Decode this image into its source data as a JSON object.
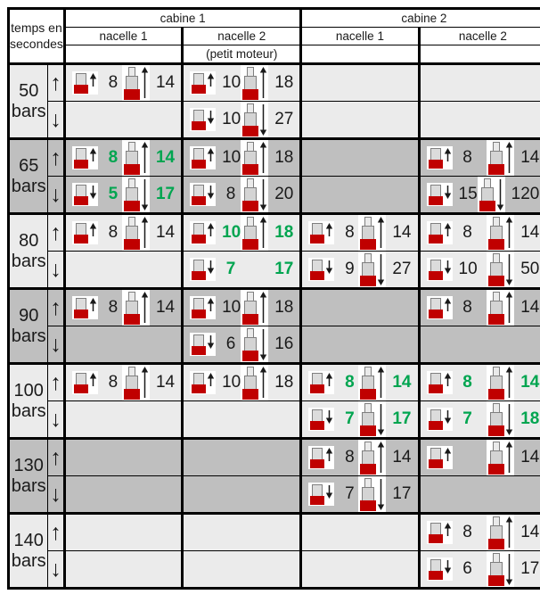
{
  "table": {
    "corner_label": "temps en\nsecondes",
    "up_symbol": "↑",
    "down_symbol": "↓",
    "cabins": [
      {
        "label": "cabine 1",
        "nacelles": [
          {
            "label": "nacelle 1",
            "sub": ""
          },
          {
            "label": "nacelle 2",
            "sub": "(petit moteur)"
          }
        ]
      },
      {
        "label": "cabine 2",
        "nacelles": [
          {
            "label": "nacelle 1",
            "sub": ""
          },
          {
            "label": "nacelle 2",
            "sub": ""
          }
        ]
      }
    ],
    "colors": {
      "light_row": "#EBEBEB",
      "dark_row": "#BFBFBF",
      "accent_green": "#00A550",
      "icon_red": "#C00000",
      "border": "#000000"
    },
    "rows": [
      {
        "pressure": "50",
        "unit": "bars",
        "shade": "light",
        "cells": {
          "up": [
            [
              {
                "size": "small",
                "dir": "up",
                "value": "8",
                "green": false
              },
              {
                "size": "large",
                "dir": "up",
                "value": "14",
                "green": false
              }
            ],
            [
              {
                "size": "small",
                "dir": "up",
                "value": "10",
                "green": false
              },
              {
                "size": "large",
                "dir": "up",
                "value": "18",
                "green": false
              }
            ],
            [],
            []
          ],
          "down": [
            [],
            [
              {
                "size": "small",
                "dir": "down",
                "value": "10",
                "green": false
              },
              {
                "size": "large",
                "dir": "down",
                "value": "27",
                "green": false
              }
            ],
            [],
            []
          ]
        }
      },
      {
        "pressure": "65",
        "unit": "bars",
        "shade": "dark",
        "cells": {
          "up": [
            [
              {
                "size": "small",
                "dir": "up",
                "value": "8",
                "green": true
              },
              {
                "size": "large",
                "dir": "up",
                "value": "14",
                "green": true
              }
            ],
            [
              {
                "size": "small",
                "dir": "up",
                "value": "10",
                "green": false
              },
              {
                "size": "large",
                "dir": "up",
                "value": "18",
                "green": false
              }
            ],
            [],
            [
              {
                "size": "small",
                "dir": "up",
                "value": "8",
                "green": false
              },
              {
                "size": "large",
                "dir": "up",
                "value": "14",
                "green": false
              }
            ]
          ],
          "down": [
            [
              {
                "size": "small",
                "dir": "down",
                "value": "5",
                "green": true
              },
              {
                "size": "large",
                "dir": "down",
                "value": "17",
                "green": true
              }
            ],
            [
              {
                "size": "small",
                "dir": "down",
                "value": "8",
                "green": false
              },
              {
                "size": "large",
                "dir": "down",
                "value": "20",
                "green": false
              }
            ],
            [],
            [
              {
                "size": "small",
                "dir": "down",
                "value": "15",
                "green": false
              },
              {
                "size": "large",
                "dir": "down",
                "value": "120",
                "green": false
              }
            ]
          ]
        }
      },
      {
        "pressure": "80",
        "unit": "bars",
        "shade": "light",
        "cells": {
          "up": [
            [
              {
                "size": "small",
                "dir": "up",
                "value": "8",
                "green": false
              },
              {
                "size": "large",
                "dir": "up",
                "value": "14",
                "green": false
              }
            ],
            [
              {
                "size": "small",
                "dir": "up",
                "value": "10",
                "green": true
              },
              {
                "size": "large",
                "dir": "up",
                "value": "18",
                "green": true
              }
            ],
            [
              {
                "size": "small",
                "dir": "up",
                "value": "8",
                "green": false
              },
              {
                "size": "large",
                "dir": "up",
                "value": "14",
                "green": false
              }
            ],
            [
              {
                "size": "small",
                "dir": "up",
                "value": "8",
                "green": false
              },
              {
                "size": "large",
                "dir": "up",
                "value": "14",
                "green": false
              }
            ]
          ],
          "down": [
            [],
            [
              {
                "size": "small",
                "dir": "down",
                "value": "7",
                "green": true
              },
              {
                "size": "none",
                "dir": "down",
                "value": "17",
                "green": true
              }
            ],
            [
              {
                "size": "small",
                "dir": "down",
                "value": "9",
                "green": false
              },
              {
                "size": "large",
                "dir": "down",
                "value": "27",
                "green": false
              }
            ],
            [
              {
                "size": "small",
                "dir": "down",
                "value": "10",
                "green": false
              },
              {
                "size": "large",
                "dir": "down",
                "value": "50",
                "green": false
              }
            ]
          ]
        }
      },
      {
        "pressure": "90",
        "unit": "bars",
        "shade": "dark",
        "cells": {
          "up": [
            [
              {
                "size": "small",
                "dir": "up",
                "value": "8",
                "green": false
              },
              {
                "size": "large",
                "dir": "up",
                "value": "14",
                "green": false
              }
            ],
            [
              {
                "size": "small",
                "dir": "up",
                "value": "10",
                "green": false
              },
              {
                "size": "large",
                "dir": "up",
                "value": "18",
                "green": false
              }
            ],
            [],
            [
              {
                "size": "small",
                "dir": "up",
                "value": "8",
                "green": false
              },
              {
                "size": "large",
                "dir": "up",
                "value": "14",
                "green": false
              }
            ]
          ],
          "down": [
            [],
            [
              {
                "size": "small",
                "dir": "down",
                "value": "6",
                "green": false
              },
              {
                "size": "large",
                "dir": "down",
                "value": "16",
                "green": false
              }
            ],
            [],
            []
          ]
        }
      },
      {
        "pressure": "100",
        "unit": "bars",
        "shade": "light",
        "cells": {
          "up": [
            [
              {
                "size": "small",
                "dir": "up",
                "value": "8",
                "green": false
              },
              {
                "size": "large",
                "dir": "up",
                "value": "14",
                "green": false
              }
            ],
            [
              {
                "size": "small",
                "dir": "up",
                "value": "10",
                "green": false
              },
              {
                "size": "large",
                "dir": "up",
                "value": "18",
                "green": false
              }
            ],
            [
              {
                "size": "small",
                "dir": "up",
                "value": "8",
                "green": true
              },
              {
                "size": "large",
                "dir": "up",
                "value": "14",
                "green": true
              }
            ],
            [
              {
                "size": "small",
                "dir": "up",
                "value": "8",
                "green": true
              },
              {
                "size": "large",
                "dir": "up",
                "value": "14",
                "green": true
              }
            ]
          ],
          "down": [
            [],
            [],
            [
              {
                "size": "small",
                "dir": "down",
                "value": "7",
                "green": true
              },
              {
                "size": "large",
                "dir": "down",
                "value": "17",
                "green": true
              }
            ],
            [
              {
                "size": "small",
                "dir": "down",
                "value": "7",
                "green": true
              },
              {
                "size": "large",
                "dir": "down",
                "value": "18",
                "green": true
              }
            ]
          ]
        }
      },
      {
        "pressure": "130",
        "unit": "bars",
        "shade": "dark",
        "cells": {
          "up": [
            [],
            [],
            [
              {
                "size": "small",
                "dir": "up",
                "value": "8",
                "green": false
              },
              {
                "size": "large",
                "dir": "up",
                "value": "14",
                "green": false
              }
            ],
            [
              {
                "size": "small",
                "dir": "up",
                "value": "",
                "green": false
              },
              {
                "size": "large",
                "dir": "up",
                "value": "14",
                "green": false
              }
            ]
          ],
          "down": [
            [],
            [],
            [
              {
                "size": "small",
                "dir": "down",
                "value": "7",
                "green": false
              },
              {
                "size": "large",
                "dir": "down",
                "value": "17",
                "green": false
              }
            ],
            []
          ]
        }
      },
      {
        "pressure": "140",
        "unit": "bars",
        "shade": "light",
        "cells": {
          "up": [
            [],
            [],
            [],
            [
              {
                "size": "small",
                "dir": "up",
                "value": "8",
                "green": false
              },
              {
                "size": "large",
                "dir": "up",
                "value": "14",
                "green": false
              }
            ]
          ],
          "down": [
            [],
            [],
            [],
            [
              {
                "size": "small",
                "dir": "down",
                "value": "6",
                "green": false
              },
              {
                "size": "large",
                "dir": "down",
                "value": "17",
                "green": false
              }
            ]
          ]
        }
      }
    ]
  }
}
